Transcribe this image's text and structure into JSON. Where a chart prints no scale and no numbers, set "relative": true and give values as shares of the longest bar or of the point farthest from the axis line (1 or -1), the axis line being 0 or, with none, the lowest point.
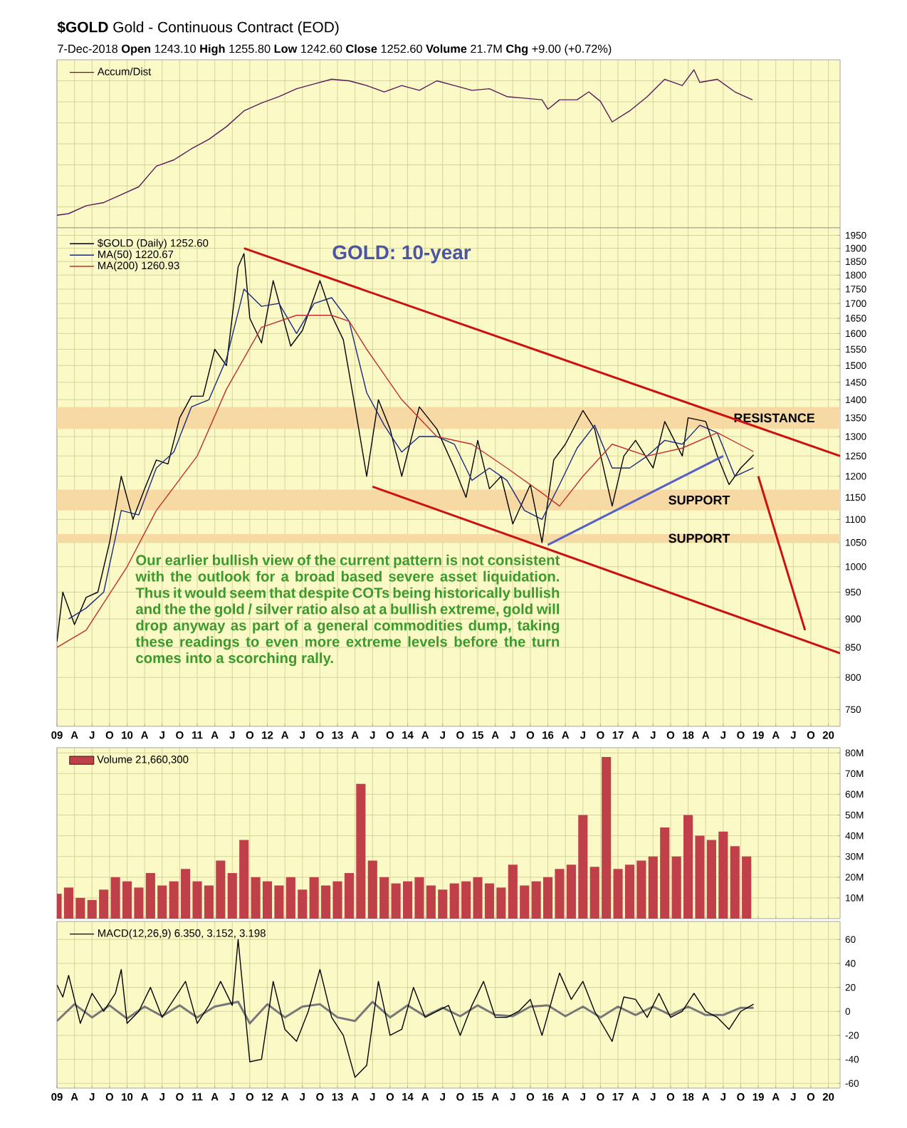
{
  "chart_data": [
    {
      "type": "line",
      "title": "**$GOLD** Gold - Continuous Contract (EOD)",
      "subtitle": "7-Dec-2018   **Open** 1243.10  **High** 1255.80  **Low** 1242.60  **Close** 1252.60  **Volume** 21.7M  **Chg** +9.00 (+0.72%)",
      "relative": true,
      "tick_labels": false,
      "grid": true,
      "legend": "top left",
      "xlim": [
        "2009-01",
        "2020-03"
      ],
      "xticks": [
        {
          "value": "2009-01",
          "label": null
        },
        {
          "value": "2009-04",
          "label": null
        },
        {
          "value": "2009-07",
          "label": null
        },
        {
          "value": "2009-10",
          "label": null
        },
        {
          "value": "2010-01",
          "label": null
        },
        {
          "value": "2010-04",
          "label": null
        },
        {
          "value": "2010-07",
          "label": null
        },
        {
          "value": "2010-10",
          "label": null
        },
        {
          "value": "2011-01",
          "label": null
        },
        {
          "value": "2011-04",
          "label": null
        },
        {
          "value": "2011-07",
          "label": null
        },
        {
          "value": "2011-10",
          "label": null
        },
        {
          "value": "2012-01",
          "label": null
        },
        {
          "value": "2012-04",
          "label": null
        },
        {
          "value": "2012-07",
          "label": null
        },
        {
          "value": "2012-10",
          "label": null
        },
        {
          "value": "2013-01",
          "label": null
        },
        {
          "value": "2013-04",
          "label": null
        },
        {
          "value": "2013-07",
          "label": null
        },
        {
          "value": "2013-10",
          "label": null
        },
        {
          "value": "2014-01",
          "label": null
        },
        {
          "value": "2014-04",
          "label": null
        },
        {
          "value": "2014-07",
          "label": null
        },
        {
          "value": "2014-10",
          "label": null
        },
        {
          "value": "2015-01",
          "label": null
        },
        {
          "value": "2015-04",
          "label": null
        },
        {
          "value": "2015-07",
          "label": null
        },
        {
          "value": "2015-10",
          "label": null
        },
        {
          "value": "2016-01",
          "label": null
        },
        {
          "value": "2016-04",
          "label": null
        },
        {
          "value": "2016-07",
          "label": null
        },
        {
          "value": "2016-10",
          "label": null
        },
        {
          "value": "2017-01",
          "label": null
        },
        {
          "value": "2017-04",
          "label": null
        },
        {
          "value": "2017-07",
          "label": null
        },
        {
          "value": "2017-10",
          "label": null
        },
        {
          "value": "2018-01",
          "label": null
        },
        {
          "value": "2018-04",
          "label": null
        },
        {
          "value": "2018-07",
          "label": null
        },
        {
          "value": "2018-10",
          "label": null
        },
        {
          "value": "2019-01",
          "label": null
        },
        {
          "value": "2019-04",
          "label": null
        },
        {
          "value": "2019-07",
          "label": null
        },
        {
          "value": "2019-10",
          "label": null
        },
        {
          "value": "2020-01",
          "label": null
        }
      ],
      "series": [
        {
          "name": "Accum/Dist",
          "color": "#5a1a5a",
          "x": [
            "2009-01",
            "2009-03",
            "2009-06",
            "2009-09",
            "2009-12",
            "2010-03",
            "2010-06",
            "2010-09",
            "2010-12",
            "2011-03",
            "2011-06",
            "2011-09",
            "2011-12",
            "2012-03",
            "2012-06",
            "2012-09",
            "2012-12",
            "2013-03",
            "2013-06",
            "2013-09",
            "2013-12",
            "2014-03",
            "2014-06",
            "2014-09",
            "2014-12",
            "2015-03",
            "2015-06",
            "2015-09",
            "2015-12",
            "2016-01",
            "2016-03",
            "2016-06",
            "2016-08",
            "2016-10",
            "2016-12",
            "2017-03",
            "2017-06",
            "2017-09",
            "2017-12",
            "2018-02",
            "2018-03",
            "2018-06",
            "2018-09",
            "2018-12"
          ],
          "values": [
            0.08,
            0.09,
            0.14,
            0.16,
            0.21,
            0.26,
            0.39,
            0.43,
            0.5,
            0.56,
            0.64,
            0.74,
            0.79,
            0.83,
            0.88,
            0.91,
            0.94,
            0.93,
            0.9,
            0.86,
            0.9,
            0.87,
            0.93,
            0.9,
            0.87,
            0.88,
            0.83,
            0.82,
            0.81,
            0.75,
            0.81,
            0.81,
            0.86,
            0.8,
            0.67,
            0.74,
            0.83,
            0.94,
            0.9,
            1,
            0.92,
            0.94,
            0.86,
            0.81
          ]
        }
      ]
    },
    {
      "type": "line",
      "log": "y",
      "ylim": [
        725,
        1980
      ],
      "yticks": [
        750,
        800,
        850,
        900,
        950,
        1000,
        1050,
        1100,
        1150,
        1200,
        1250,
        1300,
        1350,
        1400,
        1450,
        1500,
        1550,
        1600,
        1650,
        1700,
        1750,
        1800,
        1850,
        1900,
        1950
      ],
      "grid": true,
      "legend": "top left",
      "xlim": [
        "2009-01",
        "2020-03"
      ],
      "xticks": [
        {
          "value": "2009-01",
          "label": "09"
        },
        {
          "value": "2009-04",
          "label": "A"
        },
        {
          "value": "2009-07",
          "label": "J"
        },
        {
          "value": "2009-10",
          "label": "O"
        },
        {
          "value": "2010-01",
          "label": "10"
        },
        {
          "value": "2010-04",
          "label": "A"
        },
        {
          "value": "2010-07",
          "label": "J"
        },
        {
          "value": "2010-10",
          "label": "O"
        },
        {
          "value": "2011-01",
          "label": "11"
        },
        {
          "value": "2011-04",
          "label": "A"
        },
        {
          "value": "2011-07",
          "label": "J"
        },
        {
          "value": "2011-10",
          "label": "O"
        },
        {
          "value": "2012-01",
          "label": "12"
        },
        {
          "value": "2012-04",
          "label": "A"
        },
        {
          "value": "2012-07",
          "label": "J"
        },
        {
          "value": "2012-10",
          "label": "O"
        },
        {
          "value": "2013-01",
          "label": "13"
        },
        {
          "value": "2013-04",
          "label": "A"
        },
        {
          "value": "2013-07",
          "label": "J"
        },
        {
          "value": "2013-10",
          "label": "O"
        },
        {
          "value": "2014-01",
          "label": "14"
        },
        {
          "value": "2014-04",
          "label": "A"
        },
        {
          "value": "2014-07",
          "label": "J"
        },
        {
          "value": "2014-10",
          "label": "O"
        },
        {
          "value": "2015-01",
          "label": "15"
        },
        {
          "value": "2015-04",
          "label": "A"
        },
        {
          "value": "2015-07",
          "label": "J"
        },
        {
          "value": "2015-10",
          "label": "O"
        },
        {
          "value": "2016-01",
          "label": "16"
        },
        {
          "value": "2016-04",
          "label": "A"
        },
        {
          "value": "2016-07",
          "label": "J"
        },
        {
          "value": "2016-10",
          "label": "O"
        },
        {
          "value": "2017-01",
          "label": "17"
        },
        {
          "value": "2017-04",
          "label": "A"
        },
        {
          "value": "2017-07",
          "label": "J"
        },
        {
          "value": "2017-10",
          "label": "O"
        },
        {
          "value": "2018-01",
          "label": "18"
        },
        {
          "value": "2018-04",
          "label": "A"
        },
        {
          "value": "2018-07",
          "label": "J"
        },
        {
          "value": "2018-10",
          "label": "O"
        },
        {
          "value": "2019-01",
          "label": "19"
        },
        {
          "value": "2019-04",
          "label": "A"
        },
        {
          "value": "2019-07",
          "label": "J"
        },
        {
          "value": "2019-10",
          "label": "O"
        },
        {
          "value": "2020-01",
          "label": "20"
        }
      ],
      "bands": [
        {
          "axis": "y",
          "from": 1320,
          "to": 1380,
          "label": "RESISTANCE",
          "color": "#f7d9a4"
        },
        {
          "axis": "y",
          "from": 1120,
          "to": 1168,
          "label": "SUPPORT",
          "color": "#f7d9a4"
        },
        {
          "axis": "y",
          "from": 1050,
          "to": 1068,
          "label": "SUPPORT",
          "color": "#f7d9a4"
        }
      ],
      "annotations": [
        "GOLD: 10-year",
        "Our earlier bullish view of the current pattern is not consistent with the outlook for a broad based severe asset liquidation. Thus it would seem that despite COTs being historically bullish and the the gold / silver ratio also at a bullish extreme, gold will drop anyway as part of a general commodities dump, taking these readings to even more extreme levels before the turn comes into a scorching rally."
      ],
      "series": [
        {
          "name": "$GOLD (Daily) 1252.60",
          "color": "#000000",
          "x": [
            "2009-01",
            "2009-02",
            "2009-04",
            "2009-06",
            "2009-08",
            "2009-10",
            "2009-12",
            "2010-02",
            "2010-04",
            "2010-06",
            "2010-08",
            "2010-10",
            "2010-12",
            "2011-02",
            "2011-04",
            "2011-06",
            "2011-08",
            "2011-09",
            "2011-10",
            "2011-12",
            "2012-02",
            "2012-05",
            "2012-07",
            "2012-10",
            "2012-12",
            "2013-02",
            "2013-04",
            "2013-06",
            "2013-08",
            "2013-10",
            "2013-12",
            "2014-03",
            "2014-06",
            "2014-09",
            "2014-11",
            "2015-01",
            "2015-03",
            "2015-05",
            "2015-07",
            "2015-10",
            "2015-12",
            "2016-02",
            "2016-04",
            "2016-07",
            "2016-09",
            "2016-12",
            "2017-02",
            "2017-04",
            "2017-07",
            "2017-09",
            "2017-12",
            "2018-01",
            "2018-04",
            "2018-06",
            "2018-08",
            "2018-10",
            "2018-12-07"
          ],
          "values": [
            860,
            950,
            890,
            940,
            950,
            1050,
            1200,
            1100,
            1170,
            1240,
            1230,
            1350,
            1410,
            1410,
            1550,
            1500,
            1830,
            1880,
            1650,
            1570,
            1780,
            1560,
            1610,
            1780,
            1660,
            1580,
            1380,
            1200,
            1400,
            1320,
            1200,
            1380,
            1320,
            1220,
            1150,
            1290,
            1170,
            1200,
            1090,
            1180,
            1050,
            1240,
            1280,
            1370,
            1320,
            1130,
            1250,
            1290,
            1220,
            1340,
            1250,
            1350,
            1340,
            1250,
            1180,
            1220,
            1252.6
          ]
        },
        {
          "name": "MA(50) 1220.67",
          "color": "#1a2a80",
          "x": [
            "2009-03",
            "2009-06",
            "2009-09",
            "2009-12",
            "2010-03",
            "2010-06",
            "2010-09",
            "2010-12",
            "2011-03",
            "2011-06",
            "2011-09",
            "2011-12",
            "2012-03",
            "2012-06",
            "2012-09",
            "2012-12",
            "2013-03",
            "2013-06",
            "2013-09",
            "2013-12",
            "2014-03",
            "2014-06",
            "2014-09",
            "2014-12",
            "2015-03",
            "2015-06",
            "2015-09",
            "2015-12",
            "2016-03",
            "2016-06",
            "2016-09",
            "2016-12",
            "2017-03",
            "2017-06",
            "2017-09",
            "2017-12",
            "2018-03",
            "2018-06",
            "2018-09",
            "2018-12-07"
          ],
          "values": [
            900,
            920,
            950,
            1120,
            1110,
            1220,
            1260,
            1380,
            1400,
            1520,
            1750,
            1690,
            1700,
            1600,
            1700,
            1720,
            1640,
            1420,
            1330,
            1260,
            1300,
            1300,
            1280,
            1190,
            1220,
            1190,
            1120,
            1100,
            1180,
            1270,
            1330,
            1220,
            1220,
            1250,
            1290,
            1280,
            1330,
            1310,
            1200,
            1220.67
          ]
        },
        {
          "name": "MA(200) 1260.93",
          "color": "#c03030",
          "x": [
            "2009-01",
            "2009-06",
            "2010-01",
            "2010-06",
            "2011-01",
            "2011-06",
            "2011-12",
            "2012-06",
            "2012-12",
            "2013-03",
            "2013-06",
            "2013-12",
            "2014-06",
            "2014-12",
            "2015-06",
            "2015-12",
            "2016-03",
            "2016-07",
            "2016-12",
            "2017-06",
            "2017-12",
            "2018-06",
            "2018-12-07"
          ],
          "values": [
            850,
            880,
            1000,
            1120,
            1250,
            1430,
            1620,
            1660,
            1660,
            1640,
            1550,
            1400,
            1300,
            1280,
            1220,
            1160,
            1130,
            1200,
            1280,
            1250,
            1270,
            1310,
            1260.93
          ]
        },
        {
          "color": "#cc1111",
          "x": [
            "2011-09",
            "2020-03"
          ],
          "values": [
            1900,
            1250
          ]
        },
        {
          "color": "#cc1111",
          "x": [
            "2013-07",
            "2020-03"
          ],
          "values": [
            1175,
            840
          ]
        },
        {
          "color": "#5560c8",
          "x": [
            "2016-01",
            "2018-07"
          ],
          "values": [
            1045,
            1250
          ]
        },
        {
          "color": "#cc1111",
          "x": [
            "2019-01",
            "2019-09"
          ],
          "values": [
            1200,
            880
          ]
        }
      ]
    },
    {
      "type": "bar",
      "ylim": [
        0,
        82.5
      ],
      "yticks": [
        {
          "value": 10,
          "label": "10M"
        },
        {
          "value": 20,
          "label": "20M"
        },
        {
          "value": 30,
          "label": "30M"
        },
        {
          "value": 40,
          "label": "40M"
        },
        {
          "value": 50,
          "label": "50M"
        },
        {
          "value": 60,
          "label": "60M"
        },
        {
          "value": 70,
          "label": "70M"
        },
        {
          "value": 80,
          "label": "80M"
        }
      ],
      "tick_labels": "y",
      "grid": true,
      "legend": "top left",
      "xlim": [
        "2009-01",
        "2020-03"
      ],
      "xticks": [
        {
          "value": "2009-01",
          "label": null
        },
        {
          "value": "2009-04",
          "label": null
        },
        {
          "value": "2009-07",
          "label": null
        },
        {
          "value": "2009-10",
          "label": null
        },
        {
          "value": "2010-01",
          "label": null
        },
        {
          "value": "2010-04",
          "label": null
        },
        {
          "value": "2010-07",
          "label": null
        },
        {
          "value": "2010-10",
          "label": null
        },
        {
          "value": "2011-01",
          "label": null
        },
        {
          "value": "2011-04",
          "label": null
        },
        {
          "value": "2011-07",
          "label": null
        },
        {
          "value": "2011-10",
          "label": null
        },
        {
          "value": "2012-01",
          "label": null
        },
        {
          "value": "2012-04",
          "label": null
        },
        {
          "value": "2012-07",
          "label": null
        },
        {
          "value": "2012-10",
          "label": null
        },
        {
          "value": "2013-01",
          "label": null
        },
        {
          "value": "2013-04",
          "label": null
        },
        {
          "value": "2013-07",
          "label": null
        },
        {
          "value": "2013-10",
          "label": null
        },
        {
          "value": "2014-01",
          "label": null
        },
        {
          "value": "2014-04",
          "label": null
        },
        {
          "value": "2014-07",
          "label": null
        },
        {
          "value": "2014-10",
          "label": null
        },
        {
          "value": "2015-01",
          "label": null
        },
        {
          "value": "2015-04",
          "label": null
        },
        {
          "value": "2015-07",
          "label": null
        },
        {
          "value": "2015-10",
          "label": null
        },
        {
          "value": "2016-01",
          "label": null
        },
        {
          "value": "2016-04",
          "label": null
        },
        {
          "value": "2016-07",
          "label": null
        },
        {
          "value": "2016-10",
          "label": null
        },
        {
          "value": "2017-01",
          "label": null
        },
        {
          "value": "2017-04",
          "label": null
        },
        {
          "value": "2017-07",
          "label": null
        },
        {
          "value": "2017-10",
          "label": null
        },
        {
          "value": "2018-01",
          "label": null
        },
        {
          "value": "2018-04",
          "label": null
        },
        {
          "value": "2018-07",
          "label": null
        },
        {
          "value": "2018-10",
          "label": null
        },
        {
          "value": "2019-01",
          "label": null
        },
        {
          "value": "2019-04",
          "label": null
        },
        {
          "value": "2019-07",
          "label": null
        },
        {
          "value": "2019-10",
          "label": null
        },
        {
          "value": "2020-01",
          "label": null
        }
      ],
      "series": [
        {
          "name": "Volume 21,660,300",
          "color": "#c0404a",
          "x": [
            "2009-01",
            "2009-03",
            "2009-05",
            "2009-07",
            "2009-09",
            "2009-11",
            "2010-01",
            "2010-03",
            "2010-05",
            "2010-07",
            "2010-09",
            "2010-11",
            "2011-01",
            "2011-03",
            "2011-05",
            "2011-07",
            "2011-09",
            "2011-11",
            "2012-01",
            "2012-03",
            "2012-05",
            "2012-07",
            "2012-09",
            "2012-11",
            "2013-01",
            "2013-03",
            "2013-05",
            "2013-07",
            "2013-09",
            "2013-11",
            "2014-01",
            "2014-03",
            "2014-05",
            "2014-07",
            "2014-09",
            "2014-11",
            "2015-01",
            "2015-03",
            "2015-05",
            "2015-07",
            "2015-09",
            "2015-11",
            "2016-01",
            "2016-03",
            "2016-05",
            "2016-07",
            "2016-09",
            "2016-11",
            "2017-01",
            "2017-03",
            "2017-05",
            "2017-07",
            "2017-09",
            "2017-11",
            "2018-01",
            "2018-03",
            "2018-05",
            "2018-07",
            "2018-09",
            "2018-11"
          ],
          "values": [
            12,
            15,
            10,
            9,
            14,
            20,
            18,
            15,
            22,
            16,
            18,
            24,
            18,
            16,
            28,
            22,
            38,
            20,
            18,
            16,
            20,
            14,
            20,
            16,
            18,
            22,
            65,
            28,
            20,
            17,
            18,
            20,
            16,
            14,
            17,
            18,
            20,
            17,
            15,
            26,
            16,
            18,
            20,
            24,
            26,
            50,
            25,
            78,
            24,
            26,
            28,
            30,
            44,
            30,
            50,
            40,
            38,
            42,
            35,
            30
          ]
        }
      ]
    },
    {
      "type": "line",
      "ylim": [
        -64,
        75
      ],
      "yticks": [
        -60,
        -40,
        -20,
        0,
        20,
        40,
        60
      ],
      "grid": true,
      "legend": "top left",
      "xlim": [
        "2009-01",
        "2020-03"
      ],
      "xticks": [
        {
          "value": "2009-01",
          "label": "09"
        },
        {
          "value": "2009-04",
          "label": "A"
        },
        {
          "value": "2009-07",
          "label": "J"
        },
        {
          "value": "2009-10",
          "label": "O"
        },
        {
          "value": "2010-01",
          "label": "10"
        },
        {
          "value": "2010-04",
          "label": "A"
        },
        {
          "value": "2010-07",
          "label": "J"
        },
        {
          "value": "2010-10",
          "label": "O"
        },
        {
          "value": "2011-01",
          "label": "11"
        },
        {
          "value": "2011-04",
          "label": "A"
        },
        {
          "value": "2011-07",
          "label": "J"
        },
        {
          "value": "2011-10",
          "label": "O"
        },
        {
          "value": "2012-01",
          "label": "12"
        },
        {
          "value": "2012-04",
          "label": "A"
        },
        {
          "value": "2012-07",
          "label": "J"
        },
        {
          "value": "2012-10",
          "label": "O"
        },
        {
          "value": "2013-01",
          "label": "13"
        },
        {
          "value": "2013-04",
          "label": "A"
        },
        {
          "value": "2013-07",
          "label": "J"
        },
        {
          "value": "2013-10",
          "label": "O"
        },
        {
          "value": "2014-01",
          "label": "14"
        },
        {
          "value": "2014-04",
          "label": "A"
        },
        {
          "value": "2014-07",
          "label": "J"
        },
        {
          "value": "2014-10",
          "label": "O"
        },
        {
          "value": "2015-01",
          "label": "15"
        },
        {
          "value": "2015-04",
          "label": "A"
        },
        {
          "value": "2015-07",
          "label": "J"
        },
        {
          "value": "2015-10",
          "label": "O"
        },
        {
          "value": "2016-01",
          "label": "16"
        },
        {
          "value": "2016-04",
          "label": "A"
        },
        {
          "value": "2016-07",
          "label": "J"
        },
        {
          "value": "2016-10",
          "label": "O"
        },
        {
          "value": "2017-01",
          "label": "17"
        },
        {
          "value": "2017-04",
          "label": "A"
        },
        {
          "value": "2017-07",
          "label": "J"
        },
        {
          "value": "2017-10",
          "label": "O"
        },
        {
          "value": "2018-01",
          "label": "18"
        },
        {
          "value": "2018-04",
          "label": "A"
        },
        {
          "value": "2018-07",
          "label": "J"
        },
        {
          "value": "2018-10",
          "label": "O"
        },
        {
          "value": "2019-01",
          "label": "19"
        },
        {
          "value": "2019-04",
          "label": "A"
        },
        {
          "value": "2019-07",
          "label": "J"
        },
        {
          "value": "2019-10",
          "label": "O"
        },
        {
          "value": "2020-01",
          "label": "20"
        }
      ],
      "series": [
        {
          "color": "#777777",
          "x": [
            "2009-01",
            "2009-04",
            "2009-07",
            "2009-10",
            "2010-01",
            "2010-04",
            "2010-07",
            "2010-10",
            "2011-01",
            "2011-04",
            "2011-08",
            "2011-10",
            "2012-01",
            "2012-04",
            "2012-07",
            "2012-10",
            "2013-01",
            "2013-04",
            "2013-07",
            "2013-10",
            "2014-01",
            "2014-04",
            "2014-07",
            "2014-10",
            "2015-01",
            "2015-04",
            "2015-07",
            "2015-10",
            "2016-01",
            "2016-04",
            "2016-07",
            "2016-10",
            "2017-01",
            "2017-04",
            "2017-07",
            "2017-10",
            "2018-01",
            "2018-04",
            "2018-07",
            "2018-10",
            "2018-12-07"
          ],
          "values": [
            -8,
            6,
            -5,
            5,
            -6,
            4,
            -4,
            5,
            -5,
            4,
            8,
            -10,
            6,
            -5,
            4,
            6,
            -5,
            -8,
            8,
            -5,
            5,
            -4,
            3,
            -4,
            5,
            -3,
            -4,
            4,
            5,
            -4,
            4,
            -5,
            4,
            -3,
            4,
            -3,
            4,
            -3,
            -3,
            3,
            3
          ]
        },
        {
          "name": "MACD(12,26,9) 6.350, 3.152, 3.198",
          "color": "#000000",
          "x": [
            "2009-01",
            "2009-02",
            "2009-03",
            "2009-05",
            "2009-07",
            "2009-09",
            "2009-11",
            "2009-12",
            "2010-01",
            "2010-03",
            "2010-05",
            "2010-07",
            "2010-09",
            "2010-11",
            "2011-01",
            "2011-03",
            "2011-05",
            "2011-07",
            "2011-08",
            "2011-10",
            "2011-12",
            "2012-02",
            "2012-04",
            "2012-06",
            "2012-08",
            "2012-10",
            "2012-12",
            "2013-02",
            "2013-04",
            "2013-06",
            "2013-07",
            "2013-08",
            "2013-10",
            "2013-12",
            "2014-02",
            "2014-04",
            "2014-06",
            "2014-08",
            "2014-10",
            "2014-12",
            "2015-02",
            "2015-04",
            "2015-06",
            "2015-08",
            "2015-10",
            "2015-12",
            "2016-02",
            "2016-03",
            "2016-05",
            "2016-07",
            "2016-09",
            "2016-12",
            "2017-02",
            "2017-04",
            "2017-06",
            "2017-08",
            "2017-10",
            "2017-12",
            "2018-02",
            "2018-04",
            "2018-06",
            "2018-08",
            "2018-10",
            "2018-12-07"
          ],
          "values": [
            22,
            12,
            30,
            -10,
            15,
            0,
            15,
            35,
            -10,
            0,
            20,
            -5,
            10,
            25,
            -10,
            5,
            25,
            5,
            60,
            -42,
            -40,
            25,
            -15,
            -25,
            0,
            35,
            -5,
            -20,
            -55,
            -45,
            -10,
            25,
            -20,
            -15,
            20,
            -5,
            0,
            5,
            -20,
            5,
            25,
            -5,
            -5,
            0,
            10,
            -20,
            15,
            32,
            10,
            25,
            0,
            -25,
            12,
            10,
            -5,
            15,
            -5,
            0,
            15,
            0,
            -5,
            -15,
            0,
            6
          ]
        }
      ]
    }
  ]
}
